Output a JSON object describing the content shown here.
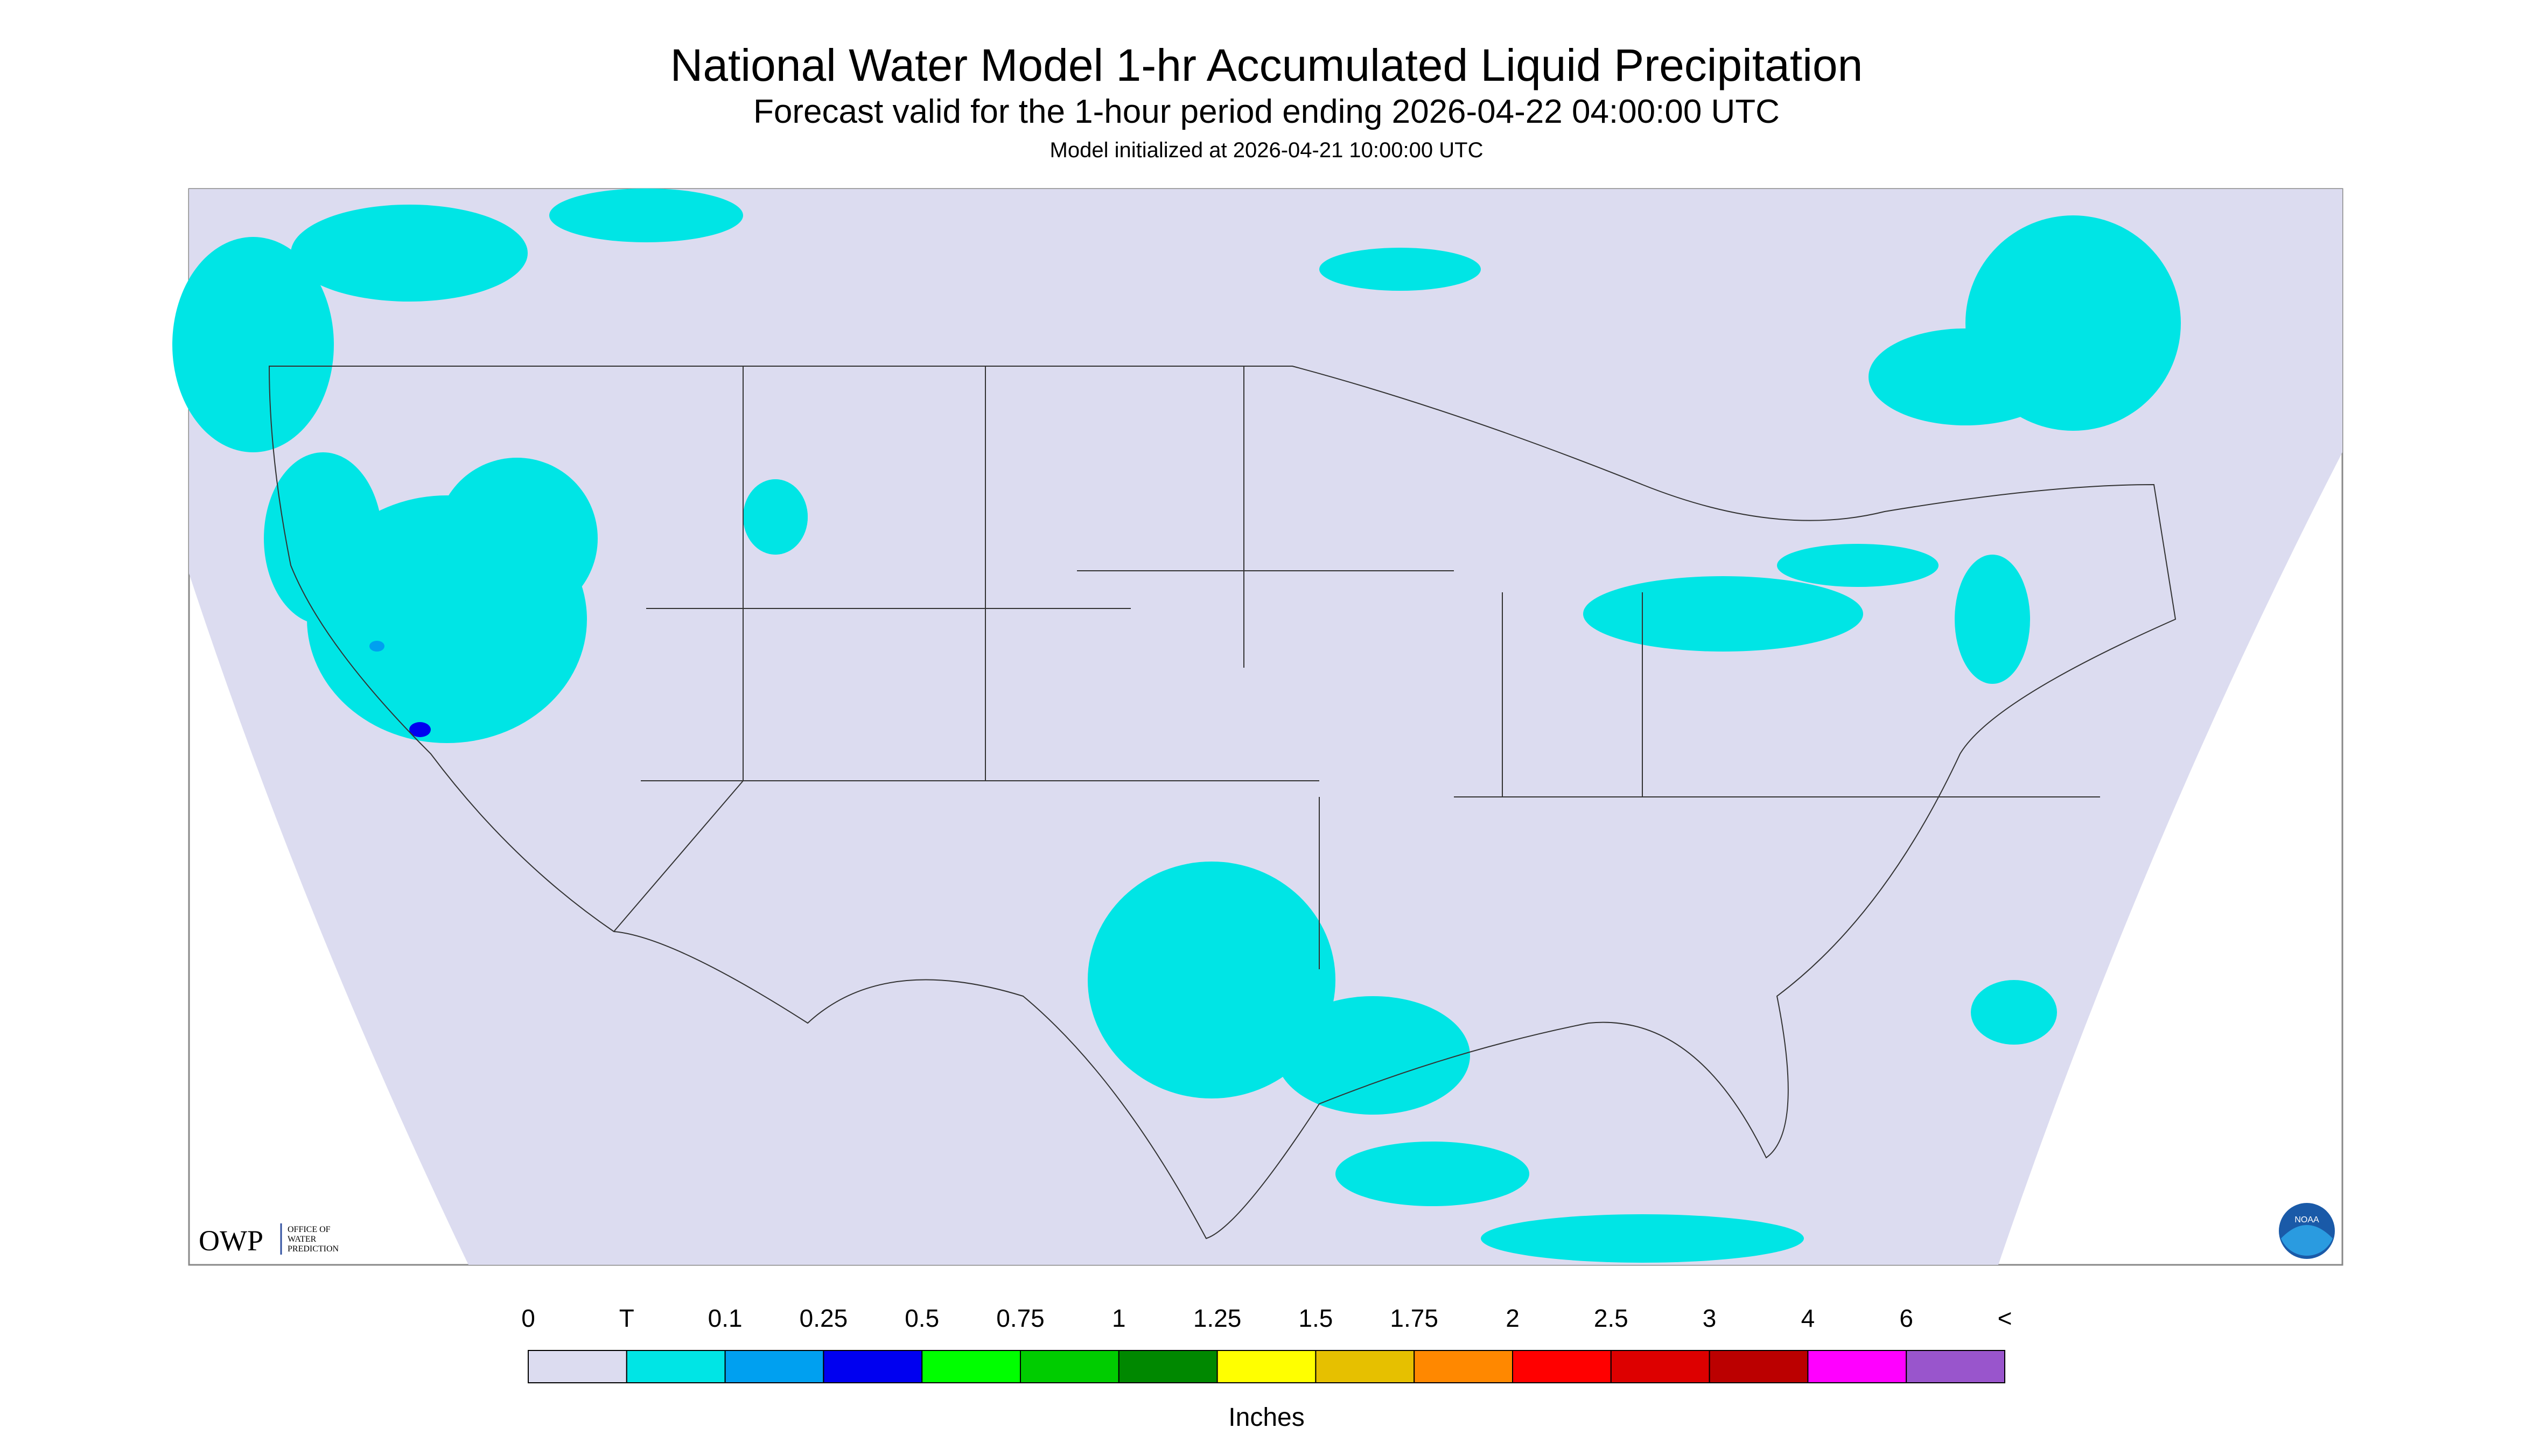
{
  "header": {
    "title": "National Water Model 1-hr Accumulated Liquid Precipitation",
    "subtitle": "Forecast valid for the 1-hour period ending 2026-04-22 04:00:00 UTC",
    "init": "Model initialized at 2026-04-21 10:00:00 UTC"
  },
  "logos": {
    "owp": "OWP",
    "owp_text": [
      "OFFICE OF",
      "WATER",
      "PREDICTION"
    ],
    "noaa": "NOAA"
  },
  "legend": {
    "labels": [
      "0",
      "T",
      "0.1",
      "0.25",
      "0.5",
      "0.75",
      "1",
      "1.25",
      "1.5",
      "1.75",
      "2",
      "2.5",
      "3",
      "4",
      "6",
      "<"
    ],
    "colors": [
      "#dcdcf0",
      "#00e5e5",
      "#00a0f0",
      "#0000f0",
      "#00ff00",
      "#00cc00",
      "#008800",
      "#ffff00",
      "#e6c000",
      "#ff8800",
      "#ff0000",
      "#dd0000",
      "#bb0000",
      "#ff00ff",
      "#9955cc"
    ],
    "units": "Inches"
  }
}
